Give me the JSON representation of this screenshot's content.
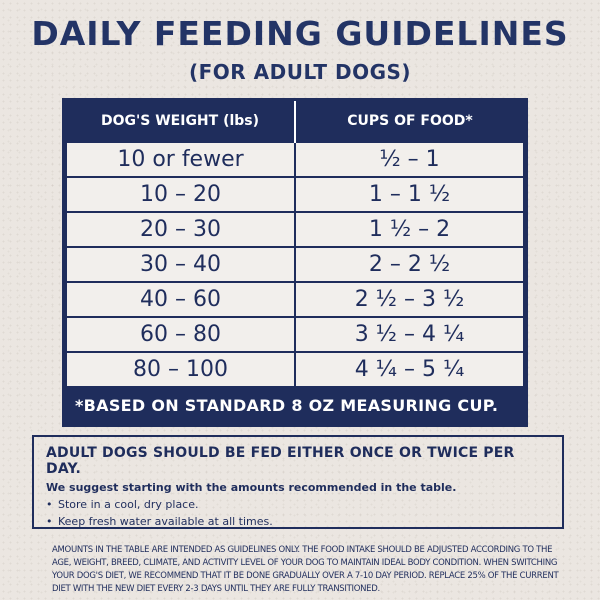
{
  "title": "DAILY FEEDING GUIDELINES",
  "subtitle": "(FOR ADULT DOGS)",
  "table": {
    "headers": [
      "DOG'S WEIGHT (lbs)",
      "CUPS OF FOOD*"
    ],
    "rows": [
      [
        "10 or fewer",
        "½ – 1"
      ],
      [
        "10 – 20",
        "1 – 1 ½"
      ],
      [
        "20 – 30",
        "1 ½ – 2"
      ],
      [
        "30 – 40",
        "2 – 2 ½"
      ],
      [
        "40 – 60",
        "2 ½ – 3 ½"
      ],
      [
        "60 – 80",
        "3 ½ – 4 ¼"
      ],
      [
        "80 – 100",
        "4 ¼ – 5 ¼"
      ]
    ],
    "footnote": "*BASED ON STANDARD 8 OZ MEASURING CUP."
  },
  "info": {
    "heading": "ADULT DOGS SHOULD BE FED EITHER ONCE OR TWICE PER DAY.",
    "suggestion": "We suggest starting with the amounts recommended in the table.",
    "bullets": [
      "Store in a cool, dry place.",
      "Keep fresh water available at all times."
    ]
  },
  "fine_print": "AMOUNTS IN THE TABLE ARE INTENDED AS GUIDELINES ONLY. THE FOOD INTAKE SHOULD BE ADJUSTED ACCORDING TO THE AGE, WEIGHT, BREED, CLIMATE, AND ACTIVITY LEVEL OF YOUR DOG TO MAINTAIN IDEAL BODY CONDITION. WHEN SWITCHING YOUR DOG'S DIET, WE RECOMMEND THAT IT BE DONE GRADUALLY OVER A 7-10 DAY PERIOD. REPLACE 25% OF THE CURRENT DIET WITH THE NEW DIET EVERY 2-3 DAYS UNTIL THEY ARE FULLY TRANSITIONED.",
  "colors": {
    "navy": "#1f2d5c",
    "background": "#ebe6e1",
    "cell": "#f2efec"
  }
}
